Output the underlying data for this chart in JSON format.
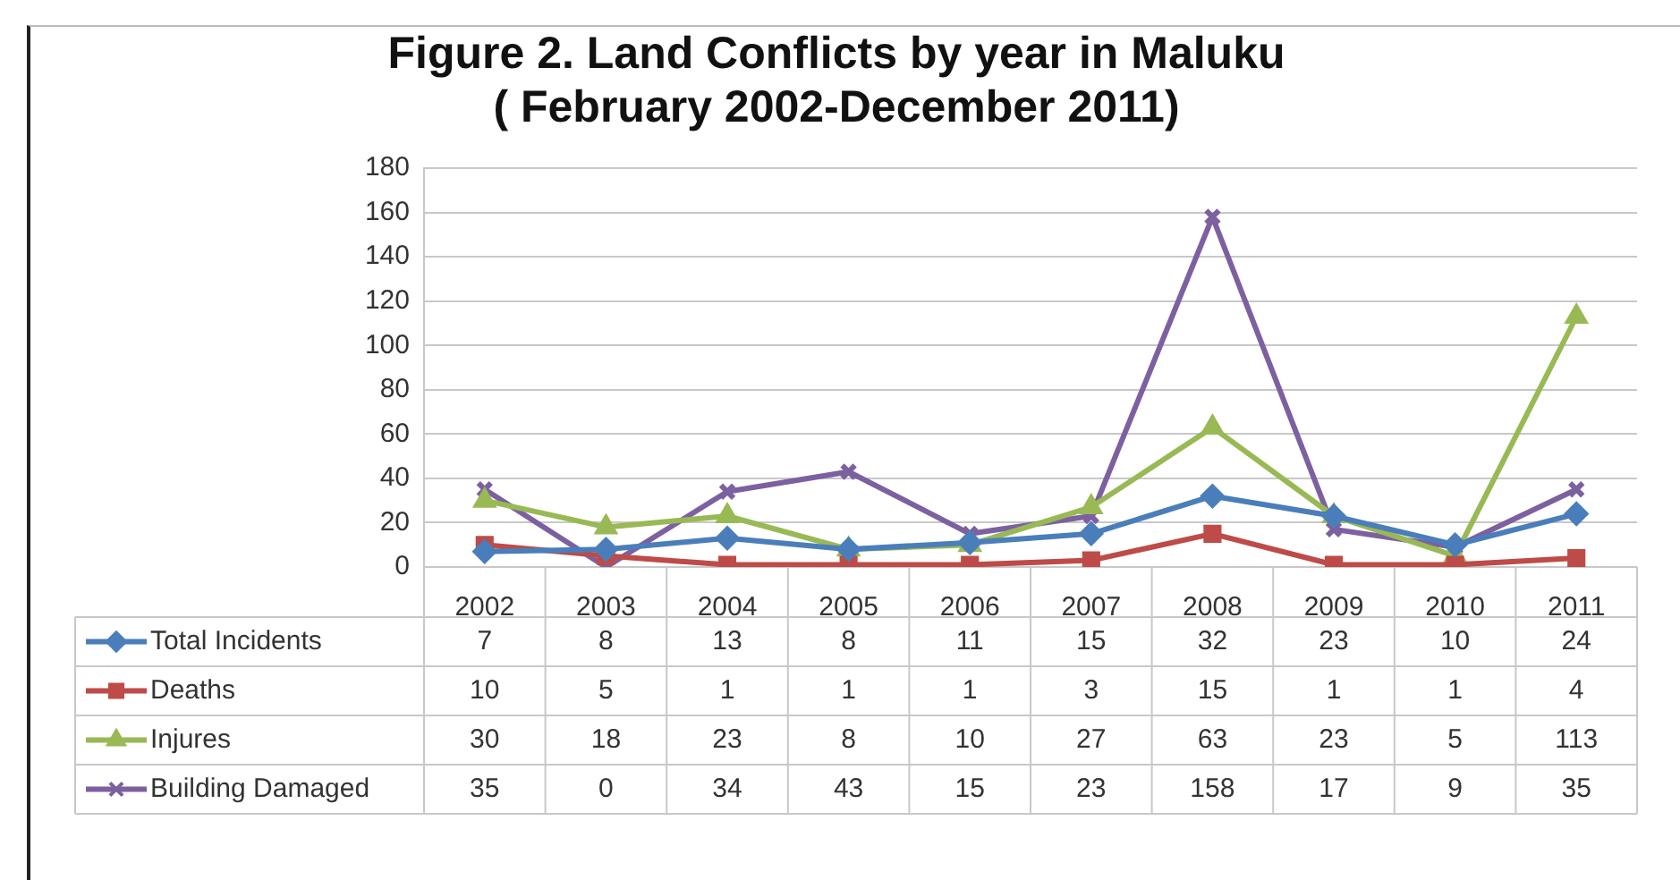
{
  "chart_data": {
    "type": "line",
    "title": "Figure 2. Land Conflicts by year in Maluku\n( February 2002-December 2011)",
    "categories": [
      "2002",
      "2003",
      "2004",
      "2005",
      "2006",
      "2007",
      "2008",
      "2009",
      "2010",
      "2011"
    ],
    "series": [
      {
        "name": "Total Incidents",
        "color": "#4a7ebb",
        "marker": "diamond",
        "values": [
          7,
          8,
          13,
          8,
          11,
          15,
          32,
          23,
          10,
          24
        ]
      },
      {
        "name": "Deaths",
        "color": "#be4b48",
        "marker": "square",
        "values": [
          10,
          5,
          1,
          1,
          1,
          3,
          15,
          1,
          1,
          4
        ]
      },
      {
        "name": "Injures",
        "color": "#98b954",
        "marker": "triangle",
        "values": [
          30,
          18,
          23,
          8,
          10,
          27,
          63,
          23,
          5,
          113
        ]
      },
      {
        "name": "Building Damaged",
        "color": "#7d60a0",
        "marker": "cross",
        "values": [
          35,
          0,
          34,
          43,
          15,
          23,
          158,
          17,
          9,
          35
        ]
      }
    ],
    "ylim": [
      0,
      180
    ],
    "yticks": [
      0,
      20,
      40,
      60,
      80,
      100,
      120,
      140,
      160,
      180
    ],
    "grid": "y",
    "legend": "bottom",
    "data_labels": true,
    "line_style": "solid"
  }
}
